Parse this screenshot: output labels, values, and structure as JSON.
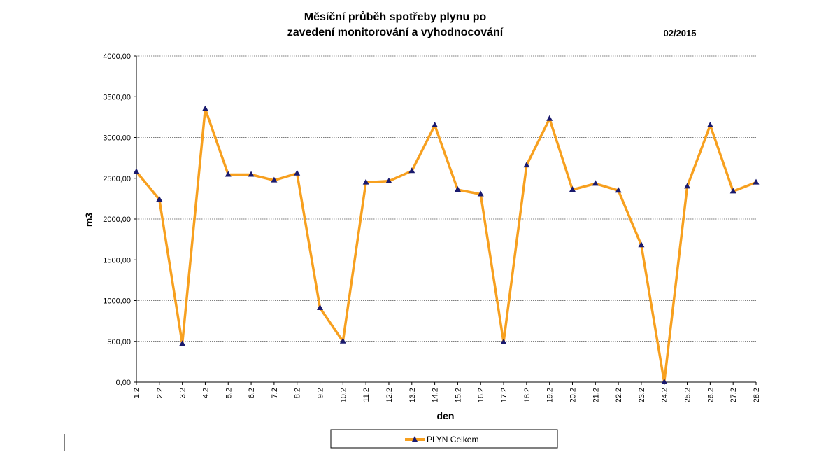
{
  "header": {
    "title_line1": "Měsíční průběh spotřeby plynu po",
    "title_line2": "zavedení monitorování a vyhodnocování",
    "period": "02/2015"
  },
  "chart_data": {
    "type": "line",
    "title": "Měsíční průběh spotřeby plynu po zavedení monitorování a vyhodnocování",
    "xlabel": "den",
    "ylabel": "m3",
    "ylim": [
      0,
      4000
    ],
    "ytick_step": 500,
    "ytick_labels": [
      "0,00",
      "500,00",
      "1000,00",
      "1500,00",
      "2000,00",
      "2500,00",
      "3000,00",
      "3500,00",
      "4000,00"
    ],
    "grid": "horizontal dashed",
    "legend_position": "bottom-center",
    "categories": [
      "1.2",
      "2.2",
      "3.2",
      "4.2",
      "5.2",
      "6.2",
      "7.2",
      "8.2",
      "9.2",
      "10.2",
      "11.2",
      "12.2",
      "13.2",
      "14.2",
      "15.2",
      "16.2",
      "17.2",
      "18.2",
      "19.2",
      "20.2",
      "21.2",
      "22.2",
      "23.2",
      "24.2",
      "25.2",
      "26.2",
      "27.2",
      "28.2"
    ],
    "series": [
      {
        "name": "PLYN Celkem",
        "color": "#f7a01f",
        "marker_color": "#1a1a6e",
        "marker": "triangle",
        "values": [
          2580,
          2240,
          470,
          3350,
          2545,
          2545,
          2475,
          2560,
          910,
          500,
          2450,
          2465,
          2590,
          3150,
          2360,
          2305,
          490,
          2660,
          3230,
          2360,
          2435,
          2350,
          1680,
          0,
          2400,
          3150,
          2340,
          2450
        ]
      }
    ]
  }
}
